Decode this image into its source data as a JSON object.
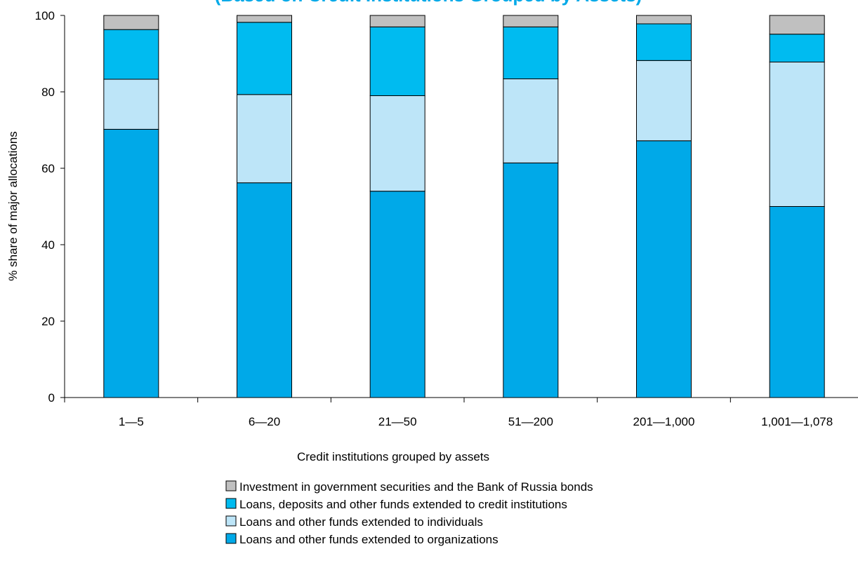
{
  "chart_data": {
    "type": "bar",
    "stacked": true,
    "title": "(Based on Credit Institutions Grouped by Assets)",
    "xlabel": "Credit institutions grouped by assets",
    "ylabel": "% share of major allocations",
    "ylim": [
      0,
      100
    ],
    "yticks": [
      0,
      20,
      40,
      60,
      80,
      100
    ],
    "categories": [
      "1—5",
      "6—20",
      "21—50",
      "51—200",
      "201—1,000",
      "1,001—1,078"
    ],
    "series": [
      {
        "name": "Loans and other funds extended to organizations",
        "color": "#00a9e8",
        "values": [
          70.2,
          56.2,
          54.0,
          61.4,
          67.2,
          50.0
        ]
      },
      {
        "name": "Loans and other funds extended to individuals",
        "color": "#bde5f8",
        "values": [
          13.1,
          23.1,
          25.0,
          22.0,
          21.0,
          37.8
        ]
      },
      {
        "name": "Loans, deposits and other funds extended to credit institutions",
        "color": "#00bbf0",
        "values": [
          13.0,
          18.9,
          18.0,
          13.6,
          9.6,
          7.3
        ]
      },
      {
        "name": "Investment in government securities and the Bank of Russia bonds",
        "color": "#c0c0c0",
        "values": [
          3.7,
          1.8,
          3.0,
          3.0,
          2.2,
          4.9
        ]
      }
    ],
    "legend": {
      "placement": "bottom",
      "order": [
        "Investment in government securities and the Bank of Russia bonds",
        "Loans, deposits and other funds extended to credit institutions",
        "Loans and other funds extended to individuals",
        "Loans and other funds extended to organizations"
      ]
    },
    "grid": false
  }
}
